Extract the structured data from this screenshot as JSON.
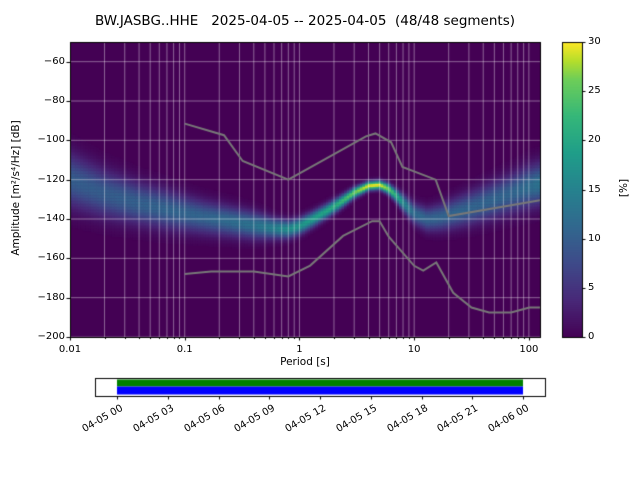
{
  "chart_data": {
    "type": "heatmap",
    "title": "BW.JASBG..HHE   2025-04-05 -- 2025-04-05  (48/48 segments)",
    "xlabel": "Period [s]",
    "ylabel": "Amplitude [m²/s⁴/Hz] [dB]",
    "xscale": "log",
    "xlim": [
      0.01,
      125
    ],
    "ylim": [
      -200,
      -50
    ],
    "grid": true,
    "x_ticks": [
      {
        "value": 0.01,
        "label": "0.01"
      },
      {
        "value": 0.1,
        "label": "0.1"
      },
      {
        "value": 1,
        "label": "1"
      },
      {
        "value": 10,
        "label": "10"
      },
      {
        "value": 100,
        "label": "100"
      }
    ],
    "y_ticks": [
      {
        "value": -60,
        "label": "−60"
      },
      {
        "value": -80,
        "label": "−80"
      },
      {
        "value": -100,
        "label": "−100"
      },
      {
        "value": -120,
        "label": "−120"
      },
      {
        "value": -140,
        "label": "−140"
      },
      {
        "value": -160,
        "label": "−160"
      },
      {
        "value": -180,
        "label": "−180"
      },
      {
        "value": -200,
        "label": "−200"
      }
    ],
    "colorbar": {
      "label": "[%]",
      "range": [
        0,
        30
      ],
      "ticks": [
        {
          "value": 0,
          "label": "0"
        },
        {
          "value": 5,
          "label": "5"
        },
        {
          "value": 10,
          "label": "10"
        },
        {
          "value": 15,
          "label": "15"
        },
        {
          "value": 20,
          "label": "20"
        },
        {
          "value": 25,
          "label": "25"
        },
        {
          "value": 30,
          "label": "30"
        }
      ],
      "colormap_name": "viridis",
      "colormap": [
        {
          "t": 0,
          "color": "#440154"
        },
        {
          "t": 0.125,
          "color": "#482878"
        },
        {
          "t": 0.25,
          "color": "#3e4a89"
        },
        {
          "t": 0.375,
          "color": "#31688e"
        },
        {
          "t": 0.5,
          "color": "#26828e"
        },
        {
          "t": 0.625,
          "color": "#1f9e89"
        },
        {
          "t": 0.75,
          "color": "#35b779"
        },
        {
          "t": 0.875,
          "color": "#6ece58"
        },
        {
          "t": 0.9375,
          "color": "#b5de2b"
        },
        {
          "t": 1,
          "color": "#fde725"
        }
      ]
    },
    "psd_distribution": {
      "description": "PPSD probability density ridge: mode amplitude, 1-sigma spread and peak probability per period",
      "periods_s": [
        0.01,
        0.02,
        0.04,
        0.07,
        0.1,
        0.15,
        0.25,
        0.4,
        0.6,
        0.8,
        1.0,
        1.3,
        1.7,
        2.2,
        3.0,
        4.0,
        5.0,
        6.0,
        7.0,
        8.5,
        10,
        13,
        17,
        22,
        30,
        45,
        70,
        100,
        125
      ],
      "mode_db": [
        -120,
        -127,
        -132,
        -135,
        -137,
        -139,
        -141,
        -143,
        -144.5,
        -145,
        -143.5,
        -140,
        -136,
        -132,
        -126.5,
        -123,
        -122.5,
        -124.5,
        -128,
        -133,
        -137,
        -140,
        -139,
        -137,
        -134.5,
        -131,
        -127,
        -123.5,
        -122
      ],
      "sigma_db": [
        9,
        8,
        7,
        6.5,
        6,
        5.5,
        5,
        4.5,
        3.5,
        3,
        2.8,
        2.6,
        2.4,
        2.2,
        1.8,
        1.5,
        1.5,
        1.8,
        2.2,
        3,
        3.5,
        4,
        4.5,
        5,
        5.5,
        6,
        6.5,
        7,
        7
      ],
      "peak_percent": [
        10,
        10,
        10.5,
        11,
        11,
        11,
        12,
        13,
        15,
        17,
        18,
        19,
        20,
        22,
        26,
        30,
        30,
        26,
        21,
        15,
        12,
        11,
        11,
        11,
        11,
        11,
        11,
        12,
        13
      ]
    },
    "noise_models": {
      "nhnm": {
        "name": "Peterson New High Noise Model",
        "periods_s": [
          0.1,
          0.22,
          0.32,
          0.8,
          3.8,
          4.6,
          6.3,
          7.9,
          15.4,
          20,
          125
        ],
        "db": [
          -91.5,
          -97.4,
          -110.5,
          -120,
          -98,
          -96.5,
          -101,
          -113.5,
          -120,
          -138.5,
          -130.5
        ]
      },
      "nlnm": {
        "name": "Peterson New Low Noise Model",
        "periods_s": [
          0.1,
          0.17,
          0.4,
          0.8,
          1.24,
          2.4,
          4.3,
          5,
          6,
          10,
          12,
          15.6,
          21.9,
          31.6,
          45,
          70,
          101,
          125
        ],
        "db": [
          -168,
          -166.7,
          -166.7,
          -169.2,
          -163.7,
          -148.6,
          -141.1,
          -141.1,
          -149,
          -163.8,
          -166.2,
          -162.1,
          -177.5,
          -185,
          -187.5,
          -187.5,
          -185,
          -185
        ]
      },
      "line_color": "#787878"
    }
  },
  "timeline": {
    "tick_labels": [
      "04-05 00",
      "04-05 03",
      "04-05 06",
      "04-05 09",
      "04-05 12",
      "04-05 15",
      "04-05 18",
      "04-05 21",
      "04-06 00"
    ],
    "coverage_bar": {
      "top_color": "#008000",
      "bottom_color": "#0000ff",
      "start_label": "04-05 00",
      "end_label": "04-06 00"
    }
  }
}
